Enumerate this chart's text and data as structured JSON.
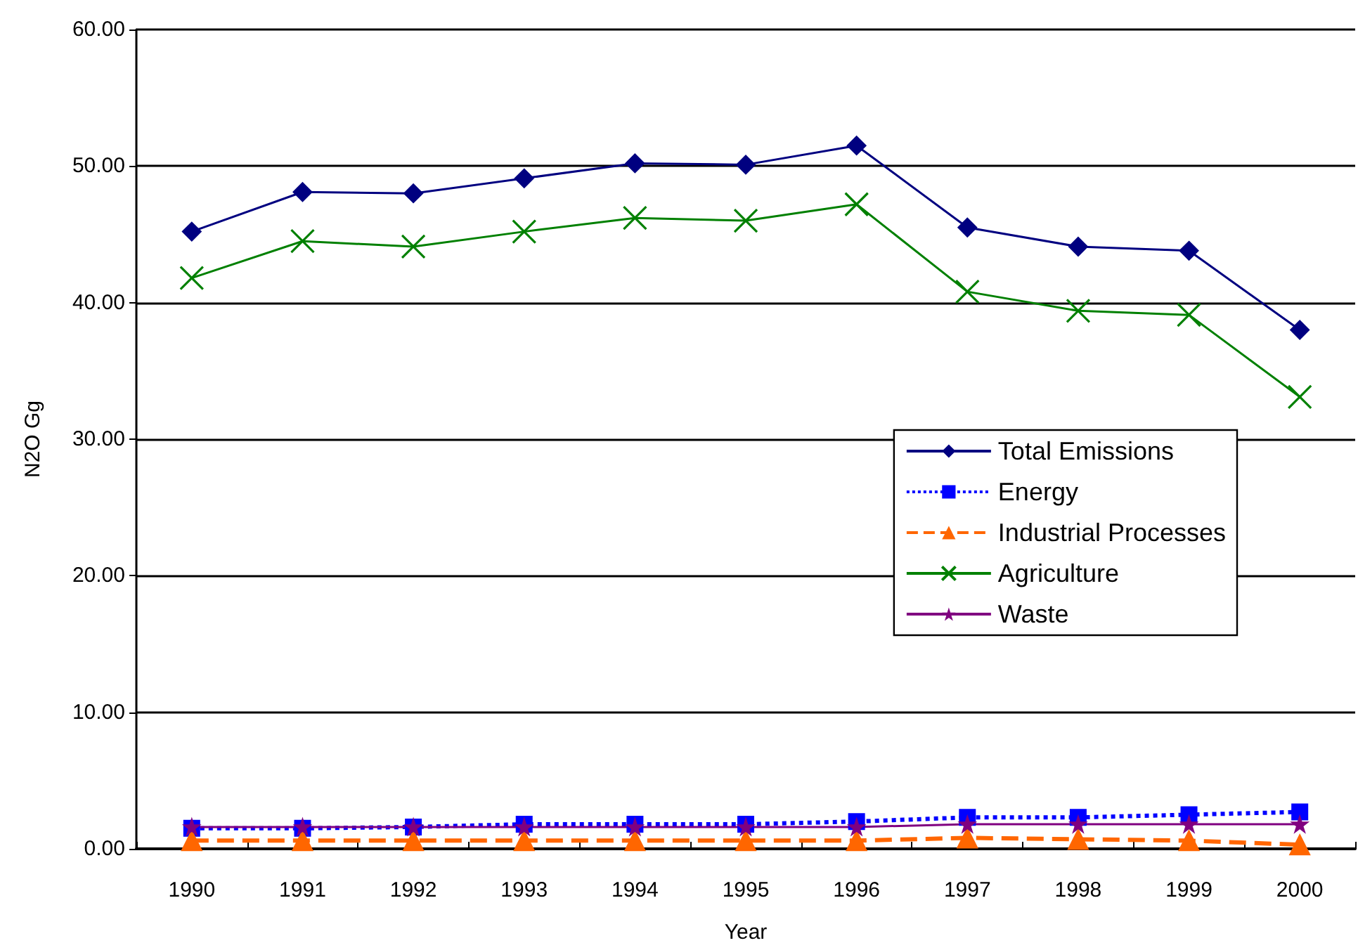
{
  "chart_data": {
    "type": "line",
    "xlabel": "Year",
    "ylabel": "N2O Gg",
    "categories": [
      "1990",
      "1991",
      "1992",
      "1993",
      "1994",
      "1995",
      "1996",
      "1997",
      "1998",
      "1999",
      "2000"
    ],
    "ylim": [
      0,
      60
    ],
    "yticks": [
      {
        "value": 0,
        "label": "0.00"
      },
      {
        "value": 10,
        "label": "10.00"
      },
      {
        "value": 20,
        "label": "20.00"
      },
      {
        "value": 30,
        "label": "30.00"
      },
      {
        "value": 40,
        "label": "40.00"
      },
      {
        "value": 50,
        "label": "50.00"
      },
      {
        "value": 60,
        "label": "60.00"
      }
    ],
    "grid": "y",
    "legend": "right",
    "series": [
      {
        "name": "Total Emissions",
        "color": "#000080",
        "marker": "diamond",
        "line_style": "solid",
        "values": [
          45.2,
          48.1,
          48.0,
          49.1,
          50.2,
          50.1,
          51.5,
          45.5,
          44.1,
          43.8,
          38.0
        ]
      },
      {
        "name": "Energy",
        "color": "#0000ff",
        "marker": "square",
        "line_style": "dotted",
        "values": [
          1.5,
          1.5,
          1.6,
          1.8,
          1.8,
          1.8,
          2.0,
          2.3,
          2.3,
          2.5,
          2.7
        ]
      },
      {
        "name": "Industrial Processes",
        "color": "#ff6600",
        "marker": "triangle",
        "line_style": "dashed",
        "values": [
          0.6,
          0.6,
          0.6,
          0.6,
          0.6,
          0.6,
          0.6,
          0.8,
          0.7,
          0.6,
          0.3
        ]
      },
      {
        "name": "Agriculture",
        "color": "#008000",
        "marker": "cross",
        "line_style": "solid",
        "values": [
          41.8,
          44.5,
          44.1,
          45.2,
          46.2,
          46.0,
          47.2,
          40.8,
          39.4,
          39.1,
          33.1
        ]
      },
      {
        "name": "Waste",
        "color": "#800080",
        "marker": "star",
        "line_style": "solid",
        "values": [
          1.6,
          1.6,
          1.6,
          1.6,
          1.6,
          1.6,
          1.6,
          1.8,
          1.8,
          1.8,
          1.8
        ]
      }
    ]
  }
}
